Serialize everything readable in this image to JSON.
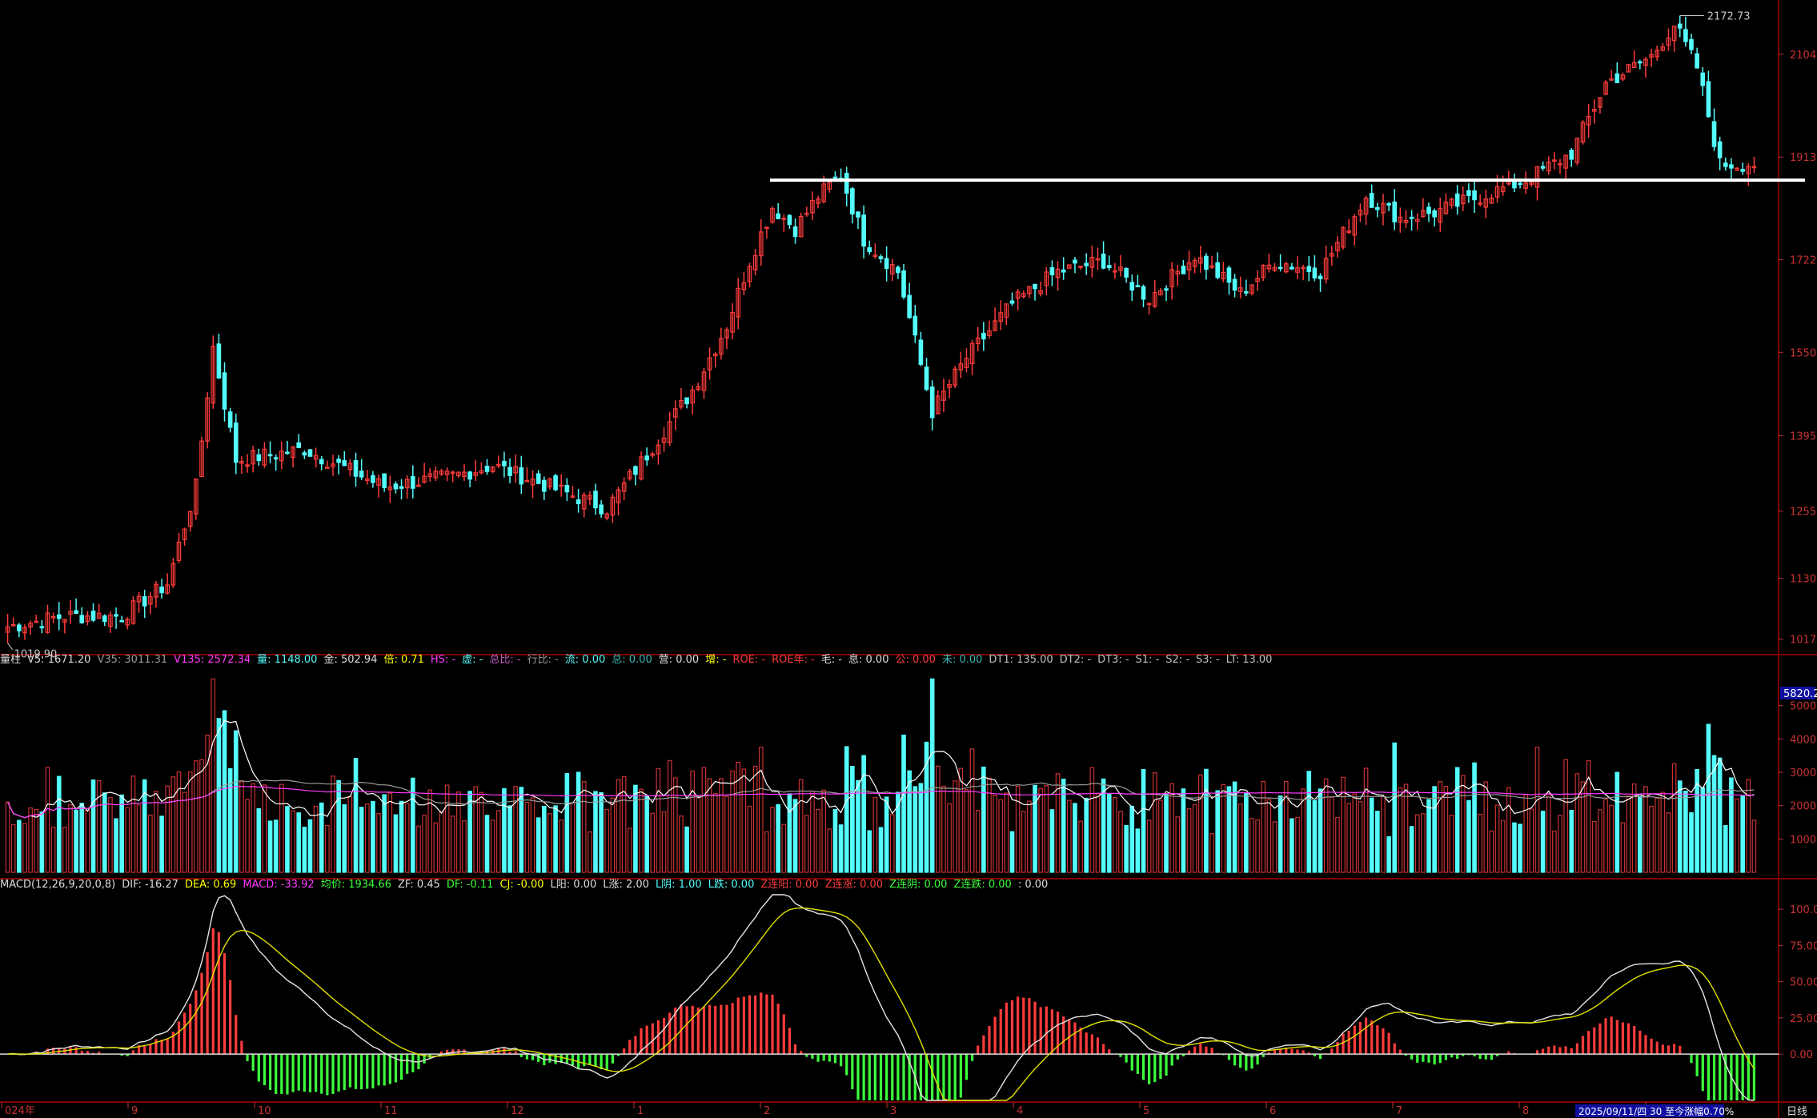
{
  "colors": {
    "background": "#000000",
    "up": "#ff3c3c",
    "down": "#54fcfc",
    "grid": "#800000",
    "axis_text": "#c83232",
    "resistance_line": "#ffffff",
    "ma_white": "#e6e6e6",
    "ma_purple": "#ff3cff",
    "dea_yellow": "#e0e000",
    "macd_pos": "#ff3c3c",
    "macd_neg": "#3cff3c"
  },
  "price_axis": {
    "ticks": [
      "2104",
      "1913",
      "1722",
      "1550",
      "1395",
      "1255",
      "1130",
      "1017"
    ],
    "high_label": "2172.73",
    "low_label": "1019.90"
  },
  "volume_axis": {
    "ticks": [
      "5000",
      "4000",
      "3000",
      "2000",
      "1000"
    ],
    "badge": "5820.2"
  },
  "macd_axis": {
    "ticks": [
      "100.00",
      "75.00",
      "50.00",
      "25.00",
      "0.00"
    ]
  },
  "volume_info": [
    {
      "text": "量柱",
      "color": "#dddddd"
    },
    {
      "text": "V5: 1671.20",
      "color": "#dddddd"
    },
    {
      "text": "V35: 3011.31",
      "color": "#9a9a9a"
    },
    {
      "text": "V135: 2572.34",
      "color": "#ff3cff"
    },
    {
      "text": "量: 1148.00",
      "color": "#54fcfc"
    },
    {
      "text": "金: 502.94",
      "color": "#dddddd"
    },
    {
      "text": "倍: 0.71",
      "color": "#ffff00"
    },
    {
      "text": "HS: -",
      "color": "#ff3cff"
    },
    {
      "text": "虚: -",
      "color": "#54fcfc"
    },
    {
      "text": "总比: -",
      "color": "#c060c0"
    },
    {
      "text": "行比: -",
      "color": "#9a9a9a"
    },
    {
      "text": "流: 0.00",
      "color": "#54fcfc"
    },
    {
      "text": "总: 0.00",
      "color": "#3cb4b4"
    },
    {
      "text": "营: 0.00",
      "color": "#dddddd"
    },
    {
      "text": "增: -",
      "color": "#ffff00"
    },
    {
      "text": "ROE: -",
      "color": "#ff3c3c"
    },
    {
      "text": "ROE年: -",
      "color": "#ff3c3c"
    },
    {
      "text": "毛: -",
      "color": "#dddddd"
    },
    {
      "text": "息: 0.00",
      "color": "#dddddd"
    },
    {
      "text": "公: 0.00",
      "color": "#ff3c3c"
    },
    {
      "text": "未: 0.00",
      "color": "#3cb4b4"
    },
    {
      "text": "DT1: 135.00",
      "color": "#c0c0c0"
    },
    {
      "text": "DT2: -",
      "color": "#c0c0c0"
    },
    {
      "text": "DT3: -",
      "color": "#c0c0c0"
    },
    {
      "text": "S1: -",
      "color": "#c0c0c0"
    },
    {
      "text": "S2: -",
      "color": "#c0c0c0"
    },
    {
      "text": "S3: -",
      "color": "#c0c0c0"
    },
    {
      "text": "LT: 13.00",
      "color": "#c0c0c0"
    }
  ],
  "macd_info": [
    {
      "text": "MACD(12,26,9,20,0,8)",
      "color": "#dddddd"
    },
    {
      "text": "DIF: -16.27",
      "color": "#dddddd"
    },
    {
      "text": "DEA: 0.69",
      "color": "#ffff00"
    },
    {
      "text": "MACD: -33.92",
      "color": "#ff3cff"
    },
    {
      "text": "均价: 1934.66",
      "color": "#3cff3c"
    },
    {
      "text": "ZF: 0.45",
      "color": "#dddddd"
    },
    {
      "text": "DF: -0.11",
      "color": "#3cff3c"
    },
    {
      "text": "CJ: -0.00",
      "color": "#ffff00"
    },
    {
      "text": "L阳: 0.00",
      "color": "#dddddd"
    },
    {
      "text": "L涨: 2.00",
      "color": "#dddddd"
    },
    {
      "text": "L阴: 1.00",
      "color": "#54fcfc"
    },
    {
      "text": "L跌: 0.00",
      "color": "#54fcfc"
    },
    {
      "text": "Z连阳: 0.00",
      "color": "#ff3c3c"
    },
    {
      "text": "Z连涨: 0.00",
      "color": "#ff3c3c"
    },
    {
      "text": "Z连阴: 0.00",
      "color": "#3cff3c"
    },
    {
      "text": "Z连跌: 0.00",
      "color": "#3cff3c"
    },
    {
      "text": ": 0.00",
      "color": "#dddddd"
    }
  ],
  "time_axis": {
    "labels": [
      "024年",
      "9",
      "10",
      "11",
      "12",
      "1",
      "2",
      "3",
      "4",
      "5",
      "6",
      "7",
      "8",
      "9"
    ],
    "date_badge": "2025/09/11/四 30 至今涨幅0.70%",
    "period": "日线"
  },
  "chart_data": [
    {
      "type": "candlestick",
      "name": "price",
      "resistance_level": 1870,
      "ylim": [
        1000,
        2190
      ],
      "anchor_closes": [
        [
          0,
          1040
        ],
        [
          10,
          1060
        ],
        [
          20,
          1060
        ],
        [
          28,
          1120
        ],
        [
          33,
          1300
        ],
        [
          36,
          1560
        ],
        [
          40,
          1350
        ],
        [
          52,
          1370
        ],
        [
          66,
          1300
        ],
        [
          78,
          1320
        ],
        [
          85,
          1340
        ],
        [
          95,
          1300
        ],
        [
          105,
          1260
        ],
        [
          112,
          1360
        ],
        [
          120,
          1480
        ],
        [
          126,
          1600
        ],
        [
          130,
          1720
        ],
        [
          134,
          1820
        ],
        [
          138,
          1780
        ],
        [
          142,
          1840
        ],
        [
          146,
          1880
        ],
        [
          150,
          1760
        ],
        [
          156,
          1700
        ],
        [
          162,
          1440
        ],
        [
          168,
          1540
        ],
        [
          176,
          1640
        ],
        [
          184,
          1700
        ],
        [
          192,
          1720
        ],
        [
          200,
          1650
        ],
        [
          208,
          1730
        ],
        [
          216,
          1660
        ],
        [
          222,
          1720
        ],
        [
          230,
          1700
        ],
        [
          238,
          1840
        ],
        [
          244,
          1800
        ],
        [
          250,
          1810
        ],
        [
          258,
          1840
        ],
        [
          266,
          1870
        ],
        [
          274,
          1920
        ],
        [
          280,
          2050
        ],
        [
          288,
          2100
        ],
        [
          292,
          2160
        ],
        [
          296,
          2080
        ],
        [
          300,
          1900
        ],
        [
          306,
          1900
        ]
      ]
    },
    {
      "type": "bar",
      "name": "volume",
      "ylim": [
        0,
        6000
      ]
    },
    {
      "type": "bar",
      "name": "macd",
      "ylim": [
        -32,
        110
      ]
    }
  ]
}
